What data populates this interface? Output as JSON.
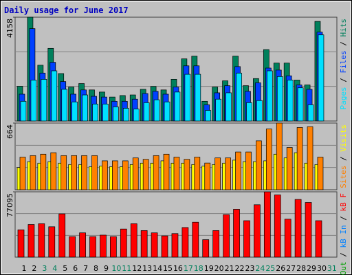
{
  "chart_data": {
    "type": "bar",
    "title": "Daily usage for June 2017",
    "categories": [
      "1",
      "2",
      "3",
      "4",
      "5",
      "6",
      "7",
      "8",
      "9",
      "10",
      "11",
      "12",
      "13",
      "14",
      "15",
      "16",
      "17",
      "18",
      "19",
      "20",
      "21",
      "22",
      "23",
      "24",
      "25",
      "26",
      "27",
      "28",
      "29",
      "30",
      "31"
    ],
    "category_colors": [
      "#000000",
      "#000000",
      "#00805c",
      "#00805c",
      "#000000",
      "#000000",
      "#000000",
      "#000000",
      "#000000",
      "#00805c",
      "#00805c",
      "#000000",
      "#000000",
      "#000000",
      "#000000",
      "#000000",
      "#00805c",
      "#00805c",
      "#000000",
      "#000000",
      "#000000",
      "#000000",
      "#000000",
      "#00805c",
      "#00805c",
      "#000000",
      "#000000",
      "#000000",
      "#000000",
      "#000000",
      "#00805c"
    ],
    "legend_separator": " / ",
    "panels": [
      {
        "ylim": [
          0,
          4158
        ],
        "yticks": [
          4158
        ],
        "series": [
          {
            "name": "Hits",
            "color": "#00805c",
            "values": [
              1390,
              4158,
              2235,
              2910,
              1900,
              1360,
              1500,
              1245,
              1160,
              960,
              1020,
              1045,
              1270,
              1385,
              1245,
              1670,
              2490,
              2600,
              790,
              1360,
              1610,
              2600,
              1415,
              1700,
              2860,
              2320,
              2320,
              1640,
              1445,
              3990,
              0
            ]
          },
          {
            "name": "Files",
            "color": "#0040ff",
            "values": [
              1075,
              3700,
              1920,
              2350,
              1580,
              1075,
              1245,
              990,
              960,
              790,
              790,
              875,
              1100,
              1190,
              1075,
              1360,
              2210,
              2210,
              650,
              1130,
              1415,
              2180,
              1190,
              1530,
              2120,
              2040,
              1810,
              1445,
              1270,
              3560,
              0
            ]
          },
          {
            "name": "Pages",
            "color": "#00e0ff",
            "values": [
              790,
              1640,
              1670,
              2010,
              1270,
              765,
              1045,
              680,
              680,
              565,
              510,
              480,
              735,
              850,
              765,
              1160,
              1870,
              1870,
              425,
              875,
              1130,
              1920,
              735,
              820,
              2010,
              1780,
              1640,
              1330,
              650,
              3450,
              0
            ]
          }
        ]
      },
      {
        "ylim": [
          0,
          664
        ],
        "yticks": [
          664
        ],
        "series": [
          {
            "name": "Visits",
            "color": "#ffff00",
            "values": [
              221,
              280,
              265,
              280,
              265,
              251,
              251,
              229,
              236,
              229,
              229,
              251,
              265,
              265,
              288,
              265,
              265,
              251,
              236,
              251,
              265,
              295,
              280,
              280,
              288,
              354,
              317,
              369,
              265,
              251,
              0
            ]
          },
          {
            "name": "Sites",
            "color": "#ff8000",
            "values": [
              325,
              340,
              354,
              369,
              340,
              340,
              340,
              340,
              288,
              288,
              288,
              317,
              303,
              340,
              354,
              325,
              303,
              325,
              266,
              317,
              317,
              376,
              376,
              487,
              605,
              664,
              421,
              620,
              628,
              325,
              0
            ]
          }
        ]
      },
      {
        "ylim": [
          0,
          77095
        ],
        "yticks": [
          77095
        ],
        "series": [
          {
            "name": "kB F",
            "color": "#ff0000",
            "values": [
              32260,
              38530,
              39430,
              35850,
              51080,
              24190,
              28670,
              24190,
              25990,
              24190,
              33150,
              39430,
              31360,
              28670,
              25090,
              27780,
              34950,
              41220,
              20610,
              31360,
              50180,
              56450,
              43010,
              61830,
              77095,
              73470,
              44800,
              68100,
              64520,
              43010,
              0
            ]
          },
          {
            "name": "kB In",
            "color": "#0080ff"
          },
          {
            "name": "kB Out",
            "color": "#00a000"
          }
        ]
      }
    ]
  }
}
